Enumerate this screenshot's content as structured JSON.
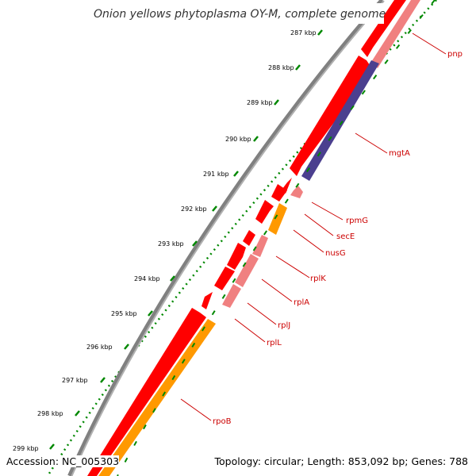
{
  "title": "Onion yellows phytoplasma OY-M, complete genome",
  "footer": {
    "accession": "Accession: NC_005303",
    "topology": "Topology: circular; Length: 853,092 bp; Genes: 788"
  },
  "ticks": [
    "287 kbp",
    "288 kbp",
    "289 kbp",
    "290 kbp",
    "291 kbp",
    "292 kbp",
    "293 kbp",
    "294 kbp",
    "295 kbp",
    "296 kbp",
    "297 kbp",
    "298 kbp",
    "299 kbp"
  ],
  "genes": [
    "pnp",
    "mgtA",
    "rpmG",
    "secE",
    "nusG",
    "rplK",
    "rplA",
    "rplJ",
    "rplL",
    "rpoB"
  ],
  "colors": {
    "backbone": "#888888",
    "ticks": "#008800",
    "forward_cds": "#ff0000",
    "pink_cds": "#f08080",
    "blue_cds": "#4b3f8f",
    "orange_cds": "#ff9900",
    "label": "#cc0000"
  }
}
